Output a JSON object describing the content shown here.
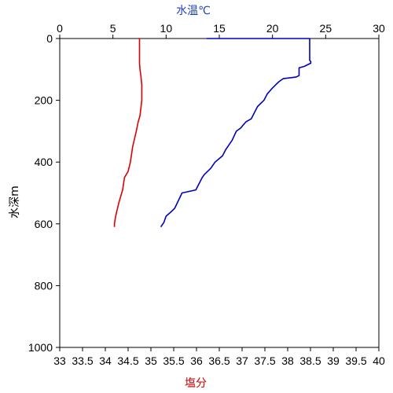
{
  "chart_data": {
    "type": "line",
    "y_axis": {
      "label": "水深m",
      "ticks": [
        "0",
        "200",
        "400",
        "600",
        "800",
        "1000"
      ],
      "range": [
        0,
        1000
      ],
      "inverted": true
    },
    "top_axis": {
      "label": "水温℃",
      "color": "#1f3fbf",
      "ticks": [
        "0",
        "5",
        "10",
        "15",
        "20",
        "25",
        "30"
      ],
      "range": [
        0,
        30
      ]
    },
    "bottom_axis": {
      "label": "塩分",
      "color": "#cc0000",
      "ticks": [
        "33",
        "33.5",
        "34",
        "34.5",
        "35",
        "35.5",
        "36",
        "36.5",
        "37",
        "37.5",
        "38",
        "38.5",
        "39",
        "39.5",
        "40"
      ],
      "range": [
        33,
        40
      ]
    },
    "grid": false,
    "series": [
      {
        "axis": "top",
        "color": "#0000c0",
        "x": [
          13.8,
          23.5,
          23.5,
          23.6,
          23.6,
          23.0,
          22.5,
          22.5,
          22.2,
          21.0,
          20.6,
          20.3,
          20.0,
          19.5,
          19.2,
          18.6,
          18.3,
          18.0,
          17.5,
          17.0,
          16.6,
          16.2,
          16.0,
          15.6,
          15.3,
          14.6,
          14.2,
          13.6,
          13.4,
          12.8,
          11.5,
          10.8,
          10.5,
          10.0,
          9.8,
          9.5
        ],
        "y": [
          0,
          0,
          70,
          75,
          80,
          90,
          95,
          120,
          125,
          130,
          140,
          150,
          160,
          180,
          200,
          220,
          240,
          260,
          270,
          290,
          300,
          330,
          340,
          360,
          380,
          400,
          420,
          440,
          450,
          490,
          500,
          550,
          560,
          575,
          595,
          610
        ]
      },
      {
        "axis": "bottom",
        "color": "#dd0000",
        "x": [
          34.72,
          34.75,
          34.75,
          34.76,
          34.78,
          34.8,
          34.8,
          34.76,
          34.72,
          34.68,
          34.6,
          34.55,
          34.5,
          34.42,
          34.38,
          34.3,
          34.25,
          34.22,
          34.2,
          34.2
        ],
        "y": [
          0,
          0,
          80,
          100,
          120,
          150,
          200,
          250,
          270,
          300,
          350,
          400,
          430,
          450,
          490,
          530,
          560,
          580,
          600,
          610
        ]
      }
    ]
  }
}
